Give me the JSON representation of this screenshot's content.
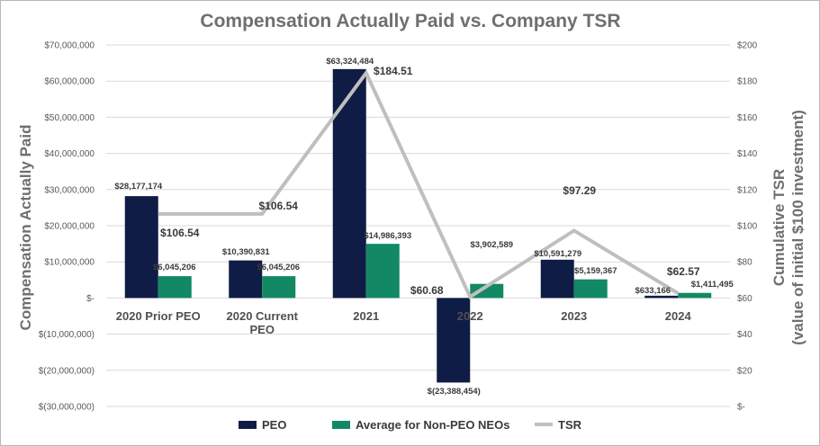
{
  "chart_data": {
    "type": "bar",
    "title": "Compensation Actually Paid vs. Company TSR",
    "ylabel": "Compensation Actually Paid",
    "y2label_line1": "Cumulative TSR",
    "y2label_line2": "(value of initial $100 investment)",
    "categories": [
      [
        "2020 Prior PEO"
      ],
      [
        "2020 Current",
        "PEO"
      ],
      [
        "2021"
      ],
      [
        "2022"
      ],
      [
        "2023"
      ],
      [
        "2024"
      ]
    ],
    "ylim": [
      -30000000,
      70000000
    ],
    "y2lim": [
      0,
      200
    ],
    "y_ticks": [
      {
        "value": 70000000,
        "label": "$70,000,000"
      },
      {
        "value": 60000000,
        "label": "$60,000,000"
      },
      {
        "value": 50000000,
        "label": "$50,000,000"
      },
      {
        "value": 40000000,
        "label": "$40,000,000"
      },
      {
        "value": 30000000,
        "label": "$30,000,000"
      },
      {
        "value": 20000000,
        "label": "$20,000,000"
      },
      {
        "value": 10000000,
        "label": "$10,000,000"
      },
      {
        "value": 0,
        "label": "$-"
      },
      {
        "value": -10000000,
        "label": "$(10,000,000)"
      },
      {
        "value": -20000000,
        "label": "$(20,000,000)"
      },
      {
        "value": -30000000,
        "label": "$(30,000,000)"
      }
    ],
    "y2_ticks": [
      {
        "value": 200,
        "label": "$200"
      },
      {
        "value": 180,
        "label": "$180"
      },
      {
        "value": 160,
        "label": "$160"
      },
      {
        "value": 140,
        "label": "$140"
      },
      {
        "value": 120,
        "label": "$120"
      },
      {
        "value": 100,
        "label": "$100"
      },
      {
        "value": 80,
        "label": "$80"
      },
      {
        "value": 60,
        "label": "$60"
      },
      {
        "value": 40,
        "label": "$40"
      },
      {
        "value": 20,
        "label": "$20"
      },
      {
        "value": 0,
        "label": "$-"
      }
    ],
    "grid": true,
    "legend_position": "bottom",
    "series": [
      {
        "name": "PEO",
        "kind": "bar",
        "color": "#0f1c45",
        "values": [
          28177174,
          10390831,
          63324484,
          -23388454,
          10591279,
          633166
        ],
        "labels": [
          "$28,177,174",
          "$10,390,831",
          "$63,324,484",
          "$(23,388,454)",
          "$10,591,279",
          "$633,166"
        ]
      },
      {
        "name": "Average for Non-PEO NEOs",
        "kind": "bar",
        "color": "#128964",
        "values": [
          6045206,
          6045206,
          14986393,
          3902589,
          5159367,
          1411495
        ],
        "labels": [
          "$6,045,206",
          "$6,045,206",
          "$14,986,393",
          "$3,902,589",
          "$5,159,367",
          "$1,411,495"
        ]
      },
      {
        "name": "TSR",
        "kind": "line",
        "axis": "right",
        "color": "#bfbfbf",
        "values": [
          106.54,
          106.54,
          184.51,
          60.68,
          97.29,
          62.57
        ],
        "labels": [
          "$106.54",
          "$106.54",
          "$184.51",
          "$60.68",
          "$97.29",
          "$62.57"
        ]
      }
    ]
  }
}
